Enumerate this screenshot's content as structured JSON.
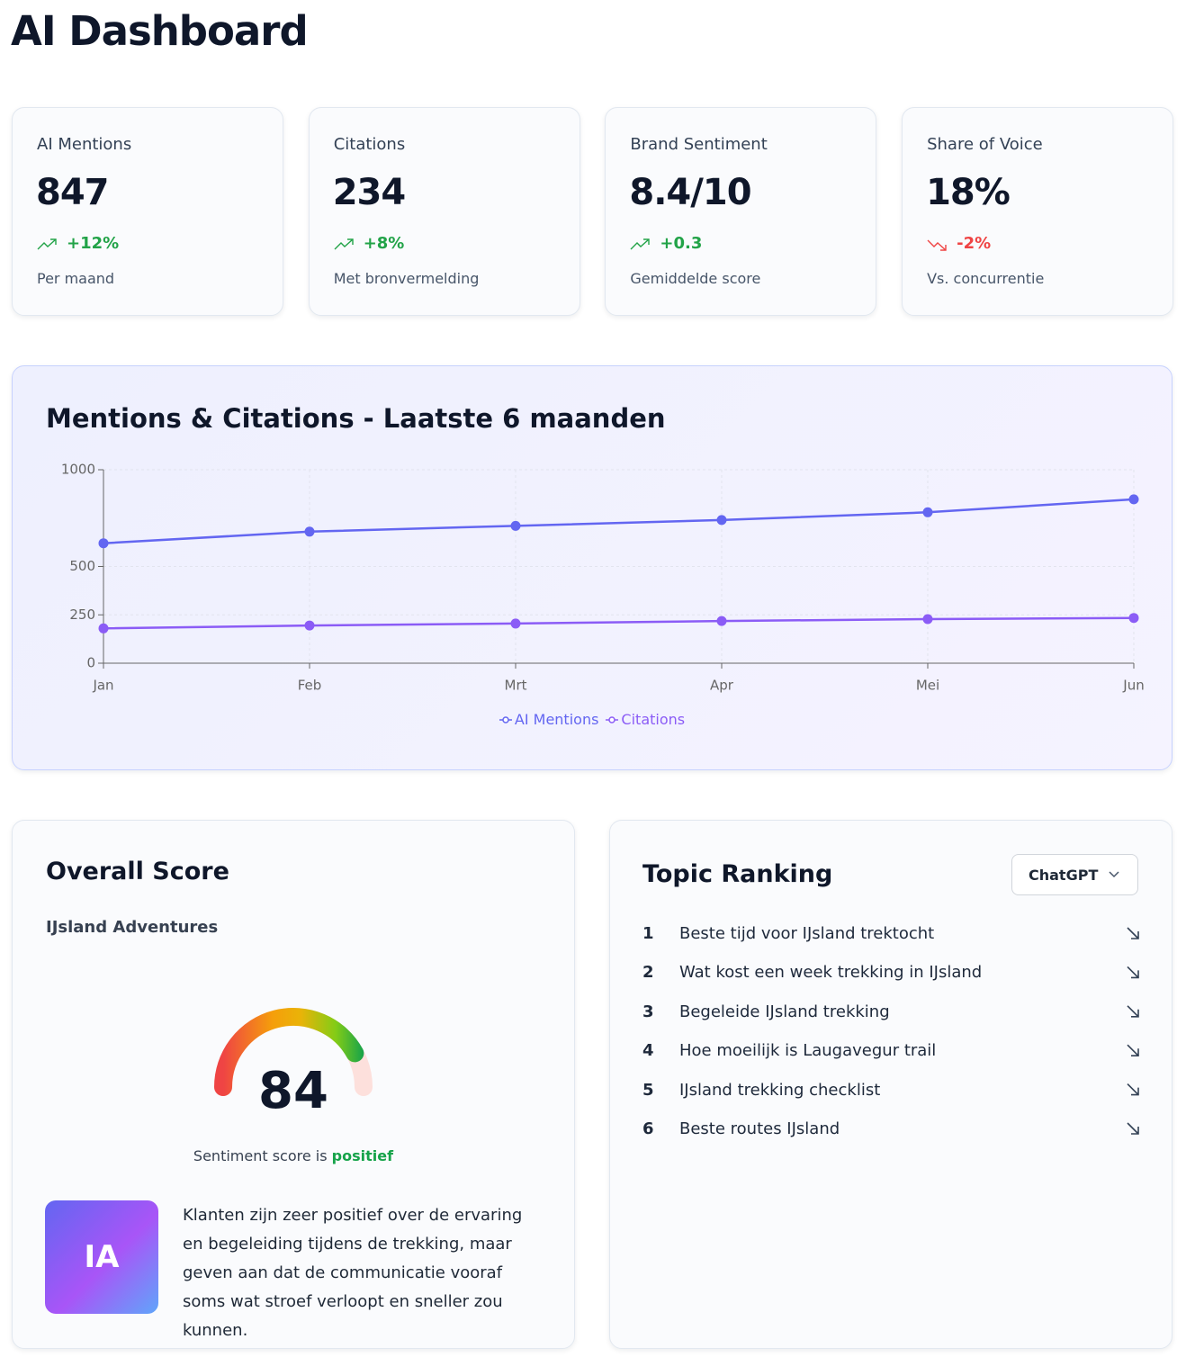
{
  "header": {
    "title": "AI Dashboard"
  },
  "kpis": [
    {
      "label": "AI Mentions",
      "value": "847",
      "change": "+12%",
      "trend": "up",
      "note": "Per maand"
    },
    {
      "label": "Citations",
      "value": "234",
      "change": "+8%",
      "trend": "up",
      "note": "Met bronvermelding"
    },
    {
      "label": "Brand Sentiment",
      "value": "8.4/10",
      "change": "+0.3",
      "trend": "up",
      "note": "Gemiddelde score"
    },
    {
      "label": "Share of Voice",
      "value": "18%",
      "change": "-2%",
      "trend": "down",
      "note": "Vs. concurrentie"
    }
  ],
  "chart_data": {
    "type": "line",
    "title": "Mentions & Citations - Laatste 6 maanden",
    "categories": [
      "Jan",
      "Feb",
      "Mrt",
      "Apr",
      "Mei",
      "Jun"
    ],
    "series": [
      {
        "name": "AI Mentions",
        "color": "#6366f1",
        "values": [
          620,
          680,
          710,
          740,
          780,
          847
        ]
      },
      {
        "name": "Citations",
        "color": "#8b5cf6",
        "values": [
          180,
          195,
          205,
          218,
          228,
          234
        ]
      }
    ],
    "ylim": [
      0,
      1000
    ],
    "yticks": [
      0,
      250,
      500,
      1000
    ],
    "grid": true
  },
  "overall": {
    "title": "Overall Score",
    "subtitle": "IJsland Adventures",
    "score": 84,
    "range": [
      0,
      100
    ],
    "sentiment_prefix": "Sentiment score is",
    "sentiment": "positief",
    "avatar": "IA",
    "description": "Klanten zijn zeer positief over de ervaring en begeleiding tijdens de trekking, maar geven aan dat de communicatie vooraf soms wat stroef verloopt en sneller zou kunnen."
  },
  "ranking": {
    "title": "Topic Ranking",
    "dropdown": "ChatGPT",
    "items": [
      {
        "rank": "1",
        "topic": "Beste tijd voor IJsland trektocht"
      },
      {
        "rank": "2",
        "topic": "Wat kost een week trekking in IJsland"
      },
      {
        "rank": "3",
        "topic": "Begeleide IJsland trekking"
      },
      {
        "rank": "4",
        "topic": "Hoe moeilijk is Laugavegur trail"
      },
      {
        "rank": "5",
        "topic": "IJsland trekking checklist"
      },
      {
        "rank": "6",
        "topic": "Beste routes IJsland"
      }
    ]
  }
}
